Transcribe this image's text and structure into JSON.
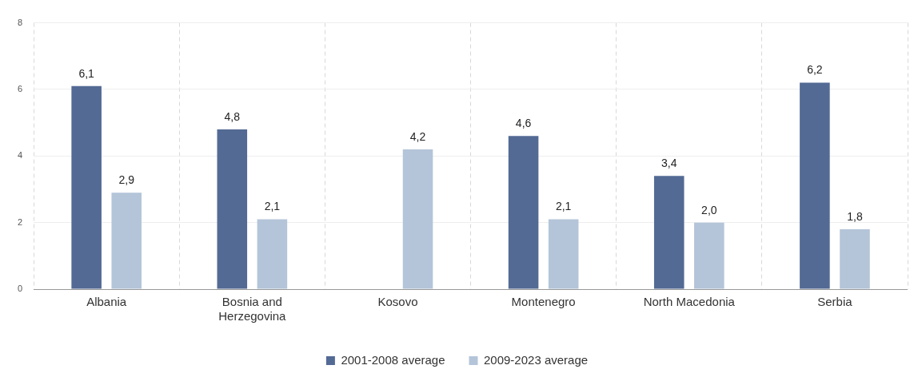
{
  "chart_data": {
    "type": "bar",
    "categories": [
      "Albania",
      "Bosnia and Herzegovina",
      "Kosovo",
      "Montenegro",
      "North Macedonia",
      "Serbia"
    ],
    "series": [
      {
        "name": "2001-2008 average",
        "color": "#536a94",
        "values": [
          6.1,
          4.8,
          null,
          4.6,
          3.4,
          6.2
        ],
        "value_labels": [
          "6,1",
          "4,8",
          null,
          "4,6",
          "3,4",
          "6,2"
        ]
      },
      {
        "name": "2009-2023 average",
        "color": "#b4c5d9",
        "values": [
          2.9,
          2.1,
          4.2,
          2.1,
          2.0,
          1.8
        ],
        "value_labels": [
          "2,9",
          "2,1",
          "4,2",
          "2,1",
          "2,0",
          "1,8"
        ]
      }
    ],
    "ylim": [
      0,
      8
    ],
    "yticks": [
      0,
      2,
      4,
      6,
      8
    ],
    "grid": true,
    "legend": "bottom"
  }
}
